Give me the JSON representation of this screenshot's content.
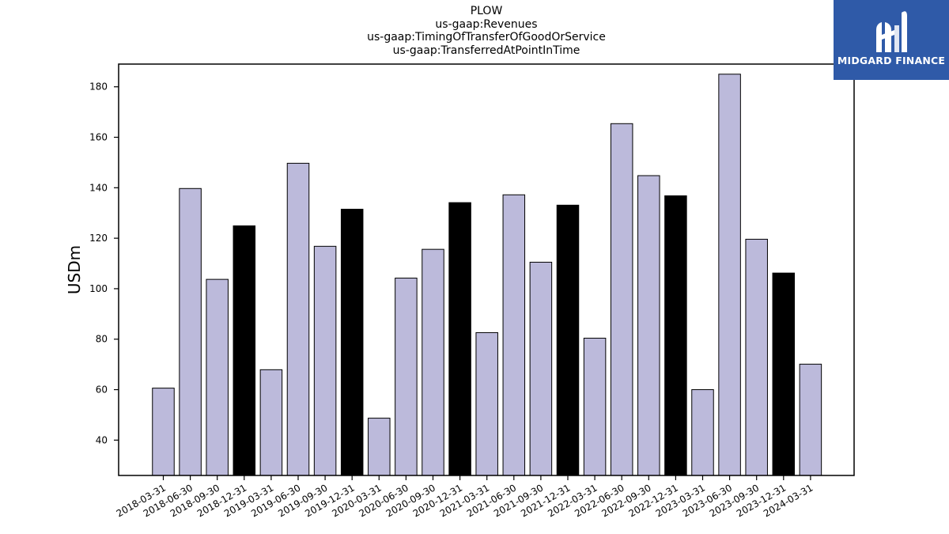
{
  "title_lines": [
    "PLOW",
    "us-gaap:Revenues",
    "us-gaap:TimingOfTransferOfGoodOrService",
    "us-gaap:TransferredAtPointInTime"
  ],
  "logo": {
    "text": "MIDGARD FINANCE",
    "background": "#2f5aa8"
  },
  "colors": {
    "bar_default": "#bcbadb",
    "bar_q4": "#000000",
    "edge": "#000000"
  },
  "chart_data": {
    "type": "bar",
    "title": "PLOW",
    "subtitle": [
      "us-gaap:Revenues",
      "us-gaap:TimingOfTransferOfGoodOrService",
      "us-gaap:TransferredAtPointInTime"
    ],
    "xlabel": "",
    "ylabel": "USDm",
    "ylim": [
      26,
      189
    ],
    "yticks": [
      40,
      60,
      80,
      100,
      120,
      140,
      160,
      180
    ],
    "grid": false,
    "categories": [
      "2018-03-31",
      "2018-06-30",
      "2018-09-30",
      "2018-12-31",
      "2019-03-31",
      "2019-06-30",
      "2019-09-30",
      "2019-12-31",
      "2020-03-31",
      "2020-06-30",
      "2020-09-30",
      "2020-12-31",
      "2021-03-31",
      "2021-06-30",
      "2021-09-30",
      "2021-12-31",
      "2022-03-31",
      "2022-06-30",
      "2022-09-30",
      "2022-12-31",
      "2023-03-31",
      "2023-06-30",
      "2023-09-30",
      "2023-12-31",
      "2024-03-31"
    ],
    "values": [
      60.6,
      139.7,
      103.7,
      124.9,
      67.9,
      149.7,
      116.8,
      131.5,
      48.7,
      104.2,
      115.6,
      134.1,
      82.6,
      137.2,
      110.5,
      133.1,
      80.4,
      165.4,
      144.8,
      136.8,
      60.0,
      185.0,
      119.6,
      106.2,
      70.1
    ],
    "highlight": [
      false,
      false,
      false,
      true,
      false,
      false,
      false,
      true,
      false,
      false,
      false,
      true,
      false,
      false,
      false,
      true,
      false,
      false,
      false,
      true,
      false,
      false,
      false,
      true,
      false
    ]
  }
}
